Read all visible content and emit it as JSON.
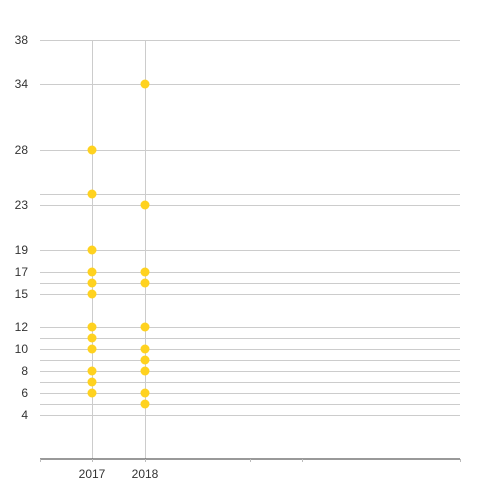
{
  "chart_data": {
    "type": "scatter",
    "title": "",
    "xlabel": "",
    "ylabel": "",
    "categories": [
      "2017",
      "2018"
    ],
    "y_ticks": [
      4,
      6,
      8,
      10,
      12,
      15,
      17,
      19,
      23,
      28,
      34,
      38
    ],
    "y_labeled_ticks": [
      "4",
      "6",
      "8",
      "10",
      "12",
      "15",
      "17",
      "19",
      "23",
      "28",
      "34",
      "38"
    ],
    "series": [
      {
        "color": "#FFD21F",
        "points": [
          {
            "x": "2017",
            "y": 6
          },
          {
            "x": "2017",
            "y": 7
          },
          {
            "x": "2017",
            "y": 8
          },
          {
            "x": "2017",
            "y": 10
          },
          {
            "x": "2017",
            "y": 11
          },
          {
            "x": "2017",
            "y": 12
          },
          {
            "x": "2017",
            "y": 15
          },
          {
            "x": "2017",
            "y": 16
          },
          {
            "x": "2017",
            "y": 17
          },
          {
            "x": "2017",
            "y": 19
          },
          {
            "x": "2017",
            "y": 24
          },
          {
            "x": "2017",
            "y": 28
          },
          {
            "x": "2018",
            "y": 5
          },
          {
            "x": "2018",
            "y": 6
          },
          {
            "x": "2018",
            "y": 8
          },
          {
            "x": "2018",
            "y": 9
          },
          {
            "x": "2018",
            "y": 10
          },
          {
            "x": "2018",
            "y": 12
          },
          {
            "x": "2018",
            "y": 16
          },
          {
            "x": "2018",
            "y": 17
          },
          {
            "x": "2018",
            "y": 23
          },
          {
            "x": "2018",
            "y": 34
          }
        ]
      }
    ],
    "grid": true,
    "legend": "none",
    "colors": {
      "point": "#FFD21F",
      "grid": "#cccccc",
      "axis": "#333333",
      "text": "#333333"
    }
  }
}
